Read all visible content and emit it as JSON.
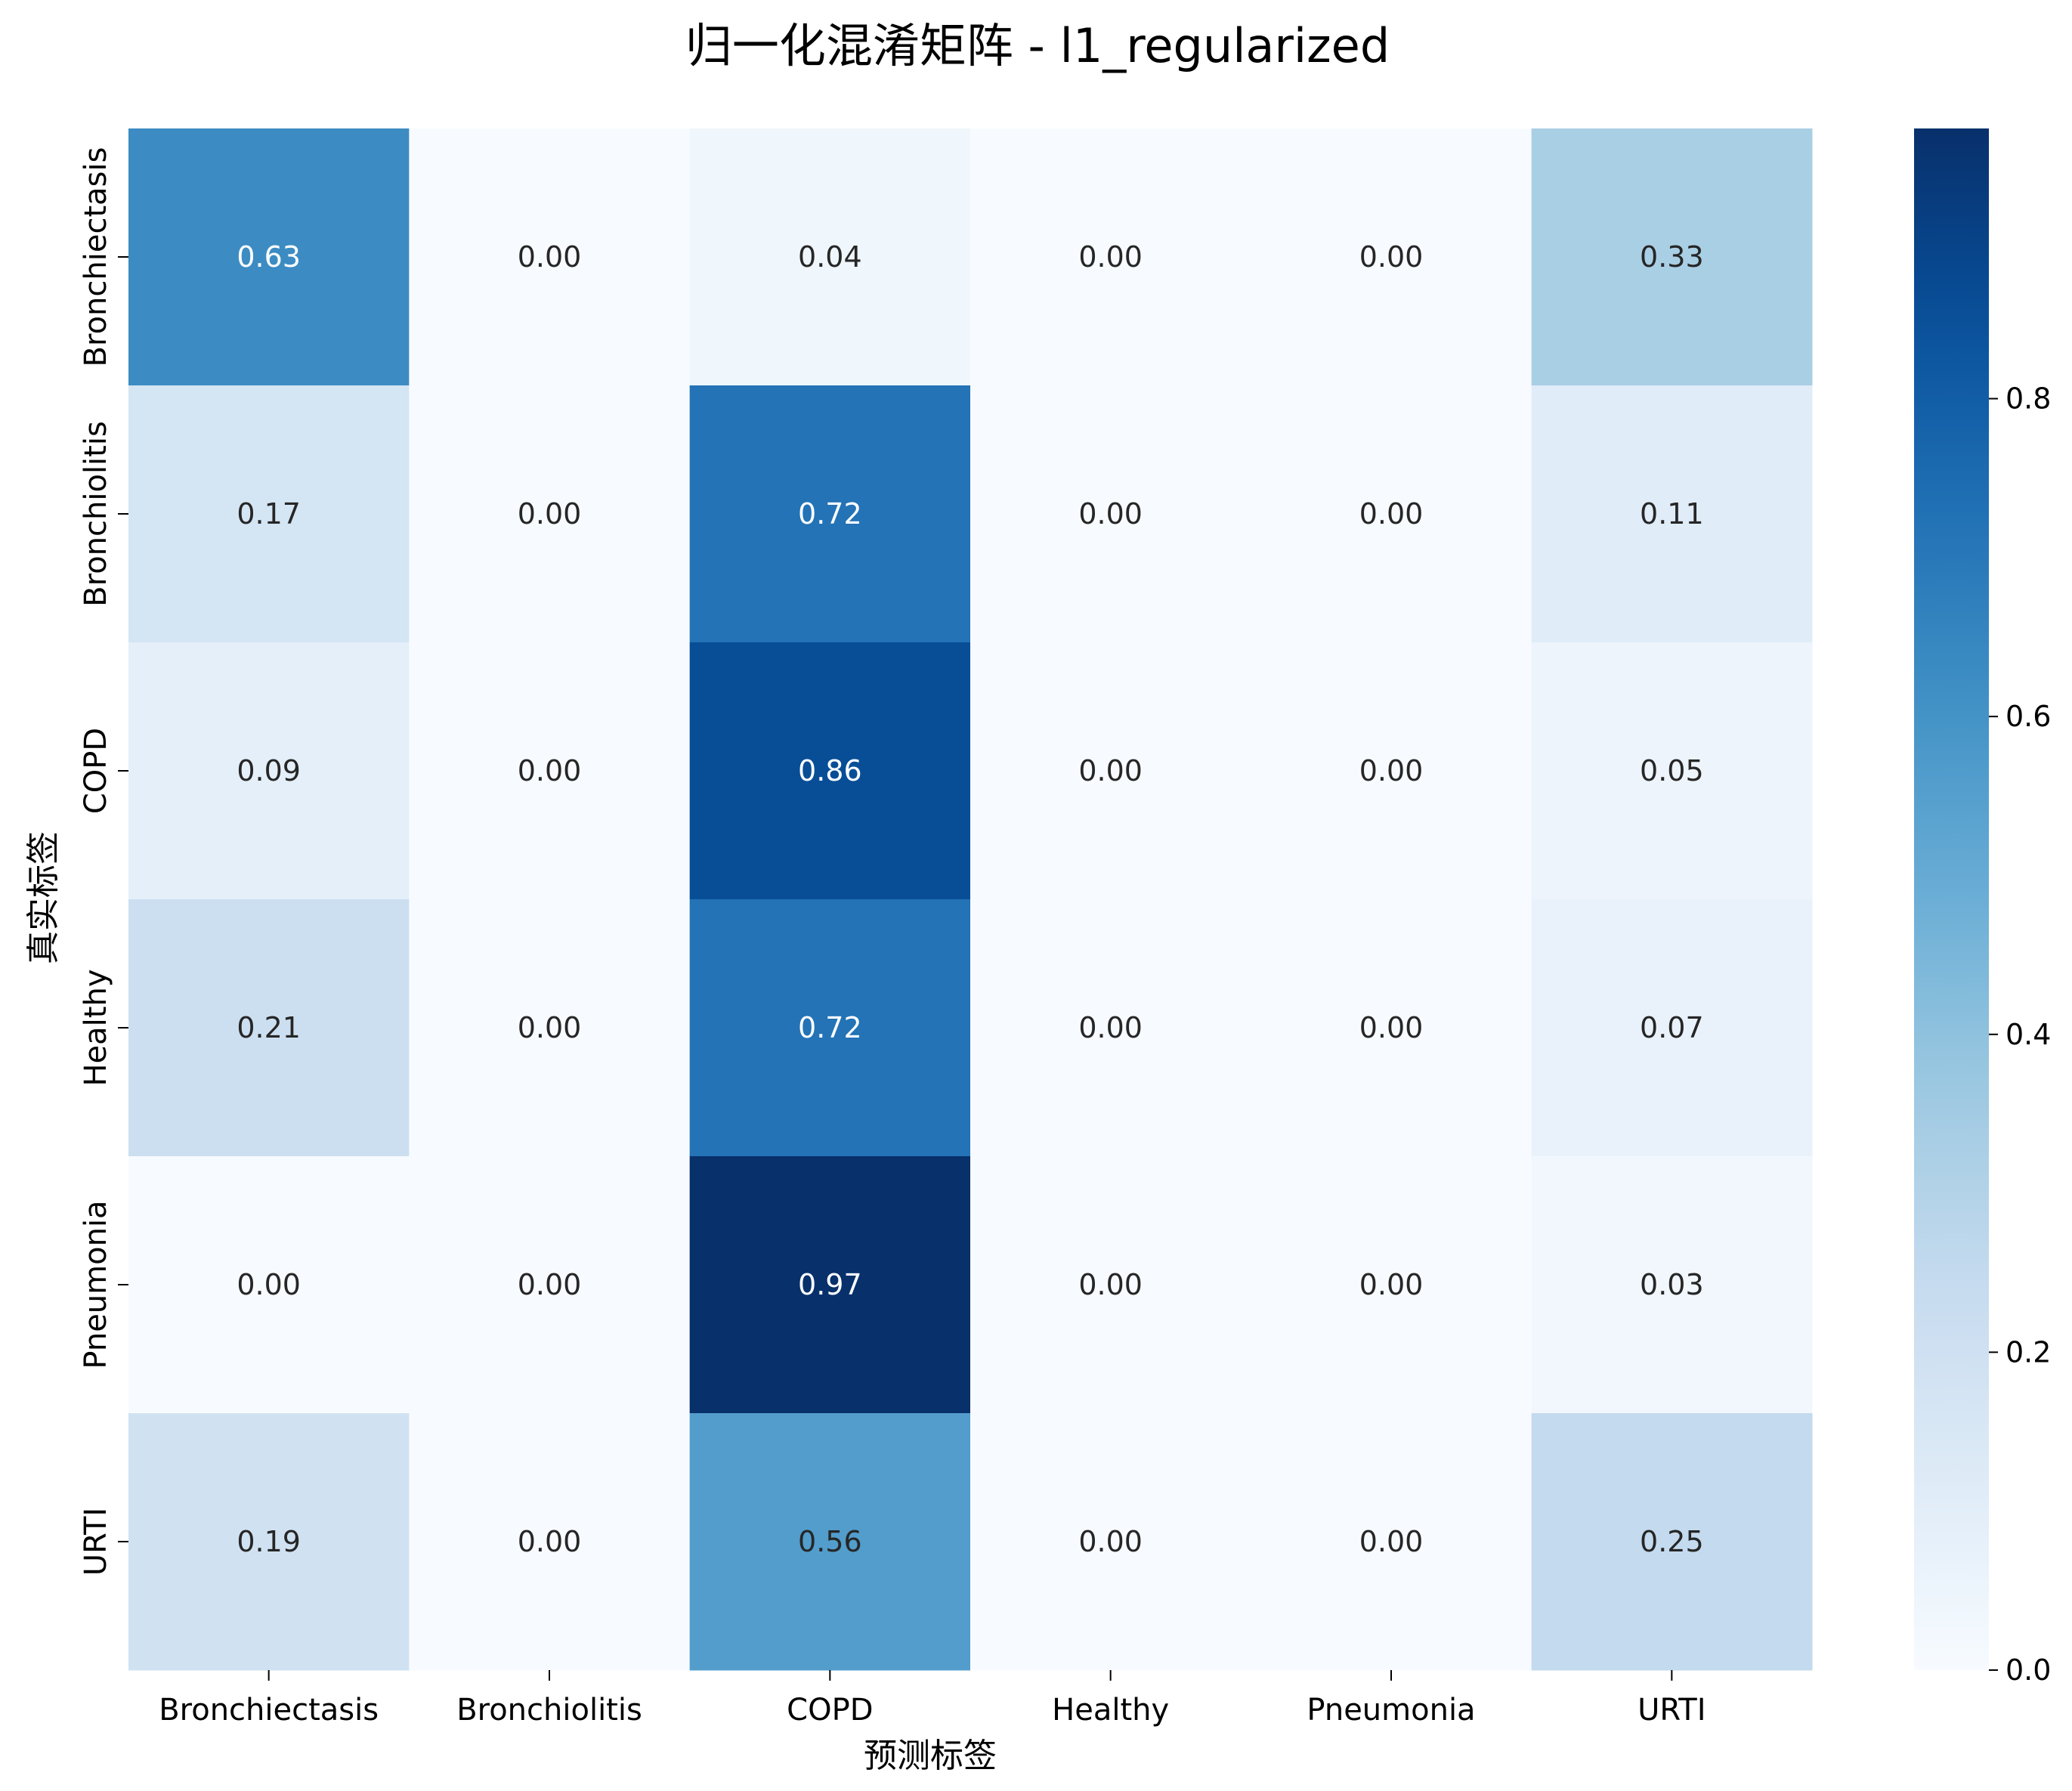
{
  "chart_data": {
    "type": "heatmap",
    "title": "归一化混淆矩阵 - l1_regularized",
    "xlabel": "预测标签",
    "ylabel": "真实标签",
    "x_categories": [
      "Bronchiectasis",
      "Bronchiolitis",
      "COPD",
      "Healthy",
      "Pneumonia",
      "URTI"
    ],
    "y_categories": [
      "Bronchiectasis",
      "Bronchiolitis",
      "COPD",
      "Healthy",
      "Pneumonia",
      "URTI"
    ],
    "values": [
      [
        0.63,
        0.0,
        0.04,
        0.0,
        0.0,
        0.33
      ],
      [
        0.17,
        0.0,
        0.72,
        0.0,
        0.0,
        0.11
      ],
      [
        0.09,
        0.0,
        0.86,
        0.0,
        0.0,
        0.05
      ],
      [
        0.21,
        0.0,
        0.72,
        0.0,
        0.0,
        0.07
      ],
      [
        0.0,
        0.0,
        0.97,
        0.0,
        0.0,
        0.03
      ],
      [
        0.19,
        0.0,
        0.56,
        0.0,
        0.0,
        0.25
      ]
    ],
    "cell_labels": [
      [
        "0.63",
        "0.00",
        "0.04",
        "0.00",
        "0.00",
        "0.33"
      ],
      [
        "0.17",
        "0.00",
        "0.72",
        "0.00",
        "0.00",
        "0.11"
      ],
      [
        "0.09",
        "0.00",
        "0.86",
        "0.00",
        "0.00",
        "0.05"
      ],
      [
        "0.21",
        "0.00",
        "0.72",
        "0.00",
        "0.00",
        "0.07"
      ],
      [
        "0.00",
        "0.00",
        "0.97",
        "0.00",
        "0.00",
        "0.03"
      ],
      [
        "0.19",
        "0.00",
        "0.56",
        "0.00",
        "0.00",
        "0.25"
      ]
    ],
    "colormap": "Blues",
    "colorbar": {
      "range": [
        0,
        0.97
      ],
      "ticks": [
        0.0,
        0.2,
        0.4,
        0.6,
        0.8
      ],
      "tick_labels": [
        "0.0",
        "0.2",
        "0.4",
        "0.6",
        "0.8"
      ]
    },
    "grid": false
  }
}
